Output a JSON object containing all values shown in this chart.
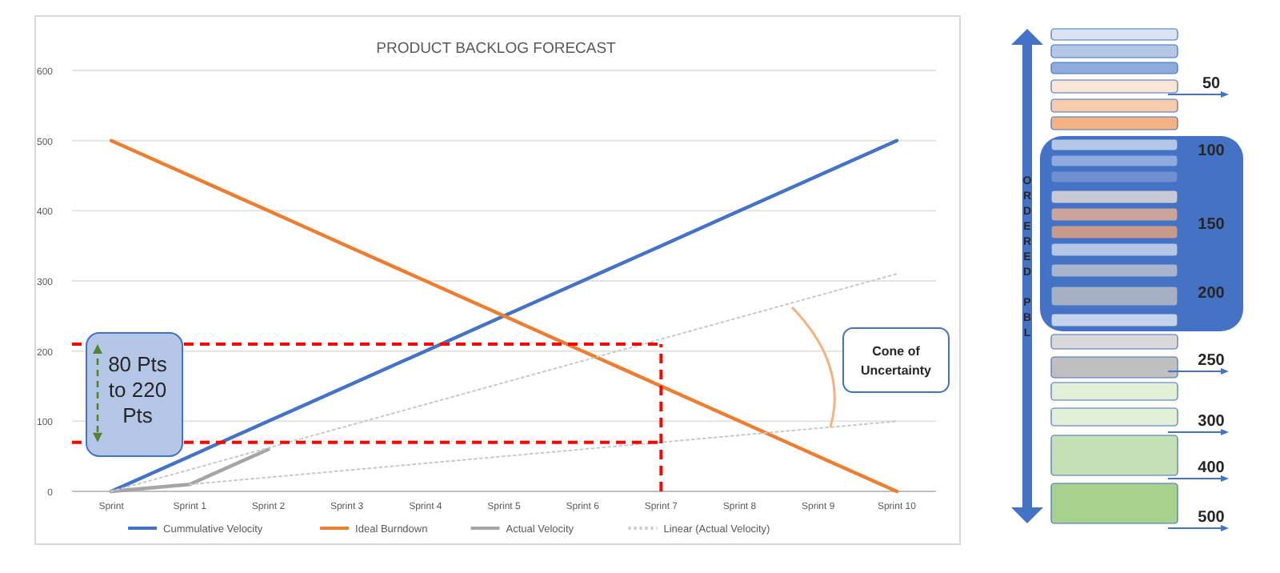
{
  "chart_data": {
    "type": "line",
    "title": "PRODUCT BACKLOG FORECAST",
    "categories": [
      "Sprint",
      "Sprint 1",
      "Sprint 2",
      "Sprint 3",
      "Sprint 4",
      "Sprint 5",
      "Sprint 6",
      "Sprint 7",
      "Sprint 8",
      "Sprint 9",
      "Sprint 10"
    ],
    "series": [
      {
        "name": "Cummulative Velocity",
        "color": "#4472c4",
        "values": [
          0,
          50,
          100,
          150,
          200,
          250,
          300,
          350,
          400,
          450,
          500
        ]
      },
      {
        "name": "Ideal Burndown",
        "color": "#ed7d31",
        "values": [
          500,
          450,
          400,
          350,
          300,
          250,
          200,
          150,
          100,
          50,
          0
        ]
      },
      {
        "name": "Actual Velocity",
        "color": "#a5a5a5",
        "values": [
          0,
          10,
          60,
          null,
          null,
          null,
          null,
          null,
          null,
          null,
          null
        ]
      },
      {
        "name": "Linear (Actual Velocity)",
        "color": "#c9c9c9",
        "line_style": "dotted",
        "values": [
          0,
          31,
          62,
          93,
          124,
          155,
          186,
          217,
          248,
          279,
          310
        ]
      },
      {
        "color": "#c9c9c9",
        "line_style": "dotted",
        "values": [
          null,
          10,
          20,
          30,
          40,
          50,
          60,
          70,
          80,
          90,
          100
        ]
      }
    ],
    "ylim": [
      0,
      600
    ],
    "yticks": [
      0,
      100,
      200,
      300,
      400,
      500,
      600
    ],
    "grid": "y",
    "legend": "bottom",
    "marker": "none",
    "ref_lines": [
      {
        "axis": "y",
        "value": 210,
        "color": "#ff0000",
        "line_style": "dashed"
      },
      {
        "axis": "y",
        "value": 70,
        "color": "#ff0000",
        "line_style": "dashed"
      },
      {
        "axis": "x",
        "value": "Sprint 7",
        "color": "#ff0000",
        "line_style": "dashed"
      }
    ],
    "annotations": [
      {
        "text": "80 Pts to 220 Pts",
        "y": 70
      },
      "Cone of Uncertainty",
      "ORDERED PBL",
      "50",
      "100",
      "150",
      "200",
      "250",
      "300",
      "400",
      "500"
    ]
  }
}
